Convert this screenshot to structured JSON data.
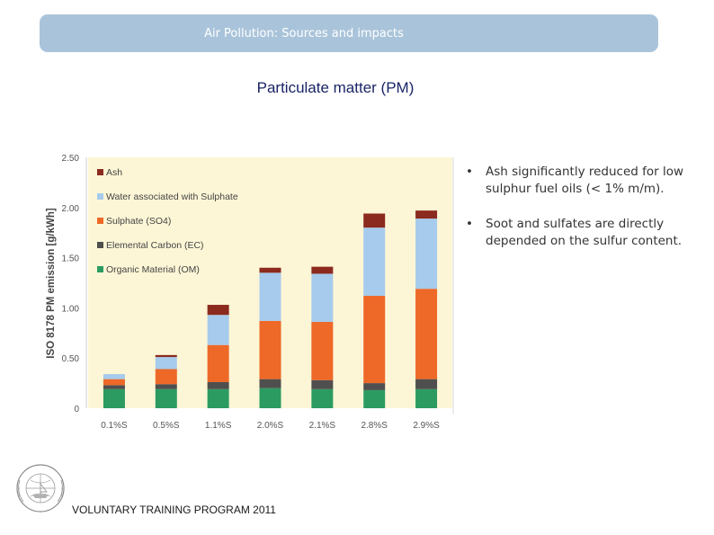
{
  "header": {
    "banner_text": "Air Pollution: Sources and impacts"
  },
  "page_title": "Particulate matter (PM)",
  "bullets": [
    "Ash significantly reduced for low sulphur fuel oils (< 1% m/m).",
    "Soot and sulfates are directly depended on the sulfur content."
  ],
  "footer": {
    "text": "VOLUNTARY TRAINING PROGRAM 2011"
  },
  "colors": {
    "banner": "#a9c4da",
    "title": "#1a2466",
    "plot_bg": "#fdf6d6",
    "ash": "#8b2a1e",
    "water_sulphate": "#a6cbec",
    "sulphate": "#ee6828",
    "elemental_carbon": "#4f4f4f",
    "organic_material": "#2c9b62"
  },
  "chart_data": {
    "type": "bar",
    "stacked": true,
    "title": "",
    "xlabel": "",
    "ylabel": "ISO 8178 PM emission [g/kWh]",
    "ylim": [
      0,
      2.5
    ],
    "yticks": [
      "0",
      "0.50",
      "1.00",
      "1.50",
      "2.00",
      "2.50"
    ],
    "grid": false,
    "legend_position": "top-left",
    "categories": [
      "0.1%S",
      "0.5%S",
      "1.1%S",
      "2.0%S",
      "2.1%S",
      "2.8%S",
      "2.9%S"
    ],
    "series": [
      {
        "name": "Organic Material (OM)",
        "color_key": "organic_material",
        "values": [
          0.19,
          0.19,
          0.19,
          0.2,
          0.19,
          0.18,
          0.19
        ]
      },
      {
        "name": "Elemental Carbon (EC)",
        "color_key": "elemental_carbon",
        "values": [
          0.04,
          0.05,
          0.07,
          0.09,
          0.09,
          0.07,
          0.1
        ]
      },
      {
        "name": "Sulphate (SO4)",
        "color_key": "sulphate",
        "values": [
          0.06,
          0.15,
          0.37,
          0.58,
          0.58,
          0.87,
          0.9
        ]
      },
      {
        "name": "Water associated with Sulphate",
        "color_key": "water_sulphate",
        "values": [
          0.05,
          0.12,
          0.3,
          0.48,
          0.48,
          0.68,
          0.7
        ]
      },
      {
        "name": "Ash",
        "color_key": "ash",
        "values": [
          0.0,
          0.02,
          0.1,
          0.05,
          0.07,
          0.14,
          0.08
        ]
      }
    ],
    "legend_entries": [
      {
        "label": "Ash",
        "color_key": "ash"
      },
      {
        "label": "Water associated with Sulphate",
        "color_key": "water_sulphate"
      },
      {
        "label": "Sulphate (SO4)",
        "color_key": "sulphate"
      },
      {
        "label": "Elemental Carbon (EC)",
        "color_key": "elemental_carbon"
      },
      {
        "label": "Organic Material (OM)",
        "color_key": "organic_material"
      }
    ]
  }
}
